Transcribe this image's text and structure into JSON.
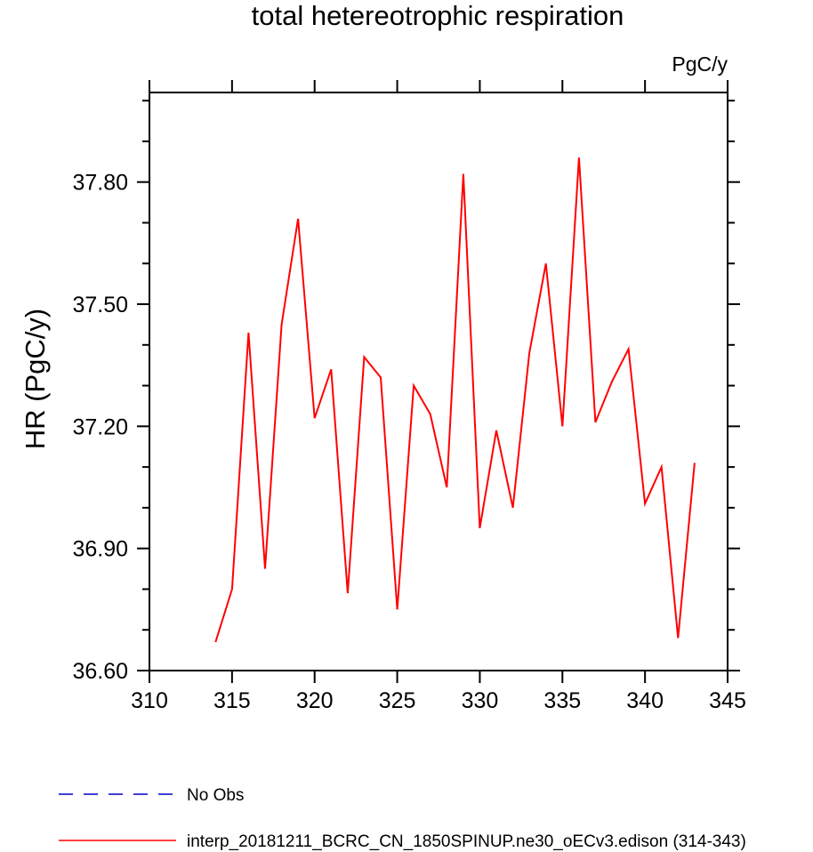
{
  "chart_data": {
    "type": "line",
    "title": "total hetereotrophic respiration",
    "units_label": "PgC/y",
    "ylabel": "HR  (PgC/y)",
    "xlabel": "",
    "xlim": [
      310,
      345
    ],
    "ylim": [
      36.6,
      38.02
    ],
    "x_ticks": [
      310,
      315,
      320,
      325,
      330,
      335,
      340,
      345
    ],
    "x_tick_labels": [
      "310",
      "315",
      "320",
      "325",
      "330",
      "335",
      "340",
      "345"
    ],
    "y_ticks": [
      36.6,
      36.9,
      37.2,
      37.5,
      37.8
    ],
    "y_tick_labels": [
      "36.60",
      "36.90",
      "37.20",
      "37.50",
      "37.80"
    ],
    "grid": false,
    "legend_placement": "bottom-left",
    "series": [
      {
        "name": "interp_20181211_BCRC_CN_1850SPINUP.ne30_oECv3.edison (314-343)",
        "color": "#ff0000",
        "style": "solid",
        "x": [
          314,
          315,
          316,
          317,
          318,
          319,
          320,
          321,
          322,
          323,
          324,
          325,
          326,
          327,
          328,
          329,
          330,
          331,
          332,
          333,
          334,
          335,
          336,
          337,
          338,
          339,
          340,
          341,
          342,
          343
        ],
        "y": [
          36.67,
          36.8,
          37.43,
          36.85,
          37.45,
          37.71,
          37.22,
          37.34,
          36.79,
          37.37,
          37.32,
          36.75,
          37.3,
          37.23,
          37.05,
          37.82,
          36.95,
          37.19,
          37.0,
          37.38,
          37.6,
          37.2,
          37.86,
          37.21,
          37.31,
          37.39,
          37.01,
          37.1,
          36.68,
          37.11
        ]
      }
    ],
    "legend": [
      {
        "label": "No Obs",
        "color": "#0000cc",
        "style": "dashed"
      },
      {
        "label": "interp_20181211_BCRC_CN_1850SPINUP.ne30_oECv3.edison (314-343)",
        "color": "#ff0000",
        "style": "solid"
      }
    ]
  }
}
